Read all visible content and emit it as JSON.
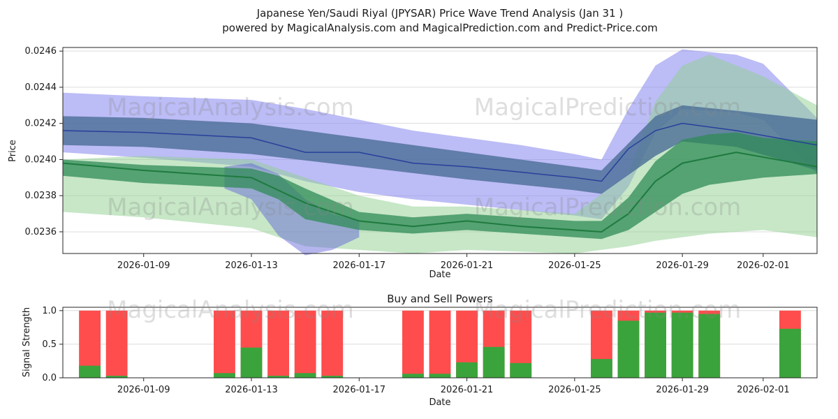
{
  "header": {
    "title_line1": "Japanese Yen/Saudi Riyal (JPYSAR) Price Wave Trend Analysis (Jan 31 )",
    "title_line2": "powered by MagicalAnalysis.com and MagicalPrediction.com and Predict-Price.com"
  },
  "watermarks": {
    "left": "MagicalAnalysis.com",
    "right": "MagicalPrediction.com"
  },
  "chart_data": [
    {
      "type": "area",
      "name": "price-wave-trend",
      "xlabel": "Date",
      "ylabel": "Price",
      "grid": true,
      "legend": "none",
      "xlim": [
        "2026-01-06",
        "2026-02-03"
      ],
      "ylim": [
        0.02348,
        0.02462
      ],
      "yticks": [
        0.0236,
        0.0238,
        0.024,
        0.0242,
        0.0244,
        0.0246
      ],
      "ytick_labels": [
        "0.0236",
        "0.0238",
        "0.0240",
        "0.0242",
        "0.0244",
        "0.0246"
      ],
      "xticks": [
        "2026-01-09",
        "2026-01-13",
        "2026-01-17",
        "2026-01-21",
        "2026-01-25",
        "2026-01-29",
        "2026-02-01"
      ],
      "bands": [
        {
          "name": "blue-forecast-band",
          "color": "#8585ee",
          "opacity": 0.55,
          "x": [
            "2026-01-06",
            "2026-01-09",
            "2026-01-13",
            "2026-01-15",
            "2026-01-17",
            "2026-01-19",
            "2026-01-21",
            "2026-01-23",
            "2026-01-25",
            "2026-01-26",
            "2026-01-27",
            "2026-01-28",
            "2026-01-29",
            "2026-01-31",
            "2026-02-01",
            "2026-02-03"
          ],
          "upper": [
            0.02437,
            0.02435,
            0.02433,
            0.02428,
            0.02422,
            0.02416,
            0.02412,
            0.02408,
            0.02403,
            0.024,
            0.02428,
            0.02452,
            0.02461,
            0.02458,
            0.02453,
            0.02423
          ],
          "lower": [
            0.02404,
            0.02401,
            0.02396,
            0.02388,
            0.02382,
            0.02378,
            0.02375,
            0.02372,
            0.02369,
            0.02367,
            0.02385,
            0.02415,
            0.02428,
            0.02426,
            0.02422,
            0.02392
          ]
        },
        {
          "name": "green-outer-band",
          "color": "#8fcf8f",
          "opacity": 0.5,
          "x": [
            "2026-01-06",
            "2026-01-09",
            "2026-01-13",
            "2026-01-15",
            "2026-01-17",
            "2026-01-19",
            "2026-01-21",
            "2026-01-23",
            "2026-01-25",
            "2026-01-27",
            "2026-01-28",
            "2026-01-29",
            "2026-01-30",
            "2026-01-31",
            "2026-02-01",
            "2026-02-03"
          ],
          "upper": [
            0.024,
            0.02402,
            0.024,
            0.0239,
            0.0238,
            0.02374,
            0.02374,
            0.02372,
            0.0237,
            0.02392,
            0.02432,
            0.02452,
            0.02458,
            0.02452,
            0.02446,
            0.0243
          ],
          "lower": [
            0.02371,
            0.02368,
            0.02362,
            0.02352,
            0.0235,
            0.02348,
            0.0235,
            0.02349,
            0.02348,
            0.02352,
            0.02355,
            0.02357,
            0.02359,
            0.0236,
            0.02361,
            0.02357
          ]
        },
        {
          "name": "steel-trend-band",
          "color": "#4a6d96",
          "opacity": 0.8,
          "x": [
            "2026-01-06",
            "2026-01-09",
            "2026-01-13",
            "2026-01-17",
            "2026-01-21",
            "2026-01-25",
            "2026-01-26",
            "2026-01-28",
            "2026-01-29",
            "2026-01-31",
            "2026-02-03"
          ],
          "upper": [
            0.02424,
            0.02423,
            0.0242,
            0.02412,
            0.02404,
            0.02396,
            0.02394,
            0.02424,
            0.0243,
            0.02427,
            0.02422
          ],
          "lower": [
            0.02408,
            0.02407,
            0.02403,
            0.02396,
            0.02389,
            0.02383,
            0.02381,
            0.02402,
            0.0241,
            0.02407,
            0.02394
          ]
        },
        {
          "name": "blue-dip-band",
          "color": "#5b5bd6",
          "opacity": 0.45,
          "x": [
            "2026-01-12",
            "2026-01-13",
            "2026-01-14",
            "2026-01-15",
            "2026-01-16",
            "2026-01-17"
          ],
          "upper": [
            0.02396,
            0.02398,
            0.02392,
            0.02378,
            0.0237,
            0.02366
          ],
          "lower": [
            0.02384,
            0.02378,
            0.02358,
            0.02347,
            0.0235,
            0.02357
          ]
        },
        {
          "name": "green-inner-band",
          "color": "#2f8b57",
          "opacity": 0.75,
          "x": [
            "2026-01-06",
            "2026-01-09",
            "2026-01-13",
            "2026-01-14",
            "2026-01-15",
            "2026-01-17",
            "2026-01-19",
            "2026-01-21",
            "2026-01-23",
            "2026-01-25",
            "2026-01-26",
            "2026-01-27",
            "2026-01-28",
            "2026-01-29",
            "2026-01-30",
            "2026-01-31",
            "2026-02-01",
            "2026-02-03"
          ],
          "upper": [
            0.024,
            0.02397,
            0.02395,
            0.02391,
            0.02384,
            0.02371,
            0.02368,
            0.0237,
            0.02368,
            0.02366,
            0.02366,
            0.02379,
            0.02399,
            0.02411,
            0.02414,
            0.02415,
            0.02412,
            0.0241
          ],
          "lower": [
            0.02391,
            0.02387,
            0.02384,
            0.02378,
            0.02367,
            0.02361,
            0.02359,
            0.02361,
            0.02359,
            0.02357,
            0.02356,
            0.02361,
            0.02371,
            0.02381,
            0.02386,
            0.02388,
            0.0239,
            0.02392
          ]
        }
      ],
      "lines": [
        {
          "name": "price-trend-line-green",
          "color": "#1e7a3e",
          "width": 2,
          "x": [
            "2026-01-06",
            "2026-01-09",
            "2026-01-13",
            "2026-01-15",
            "2026-01-17",
            "2026-01-19",
            "2026-01-21",
            "2026-01-23",
            "2026-01-25",
            "2026-01-26",
            "2026-01-27",
            "2026-01-28",
            "2026-01-29",
            "2026-01-31",
            "2026-02-03"
          ],
          "y": [
            0.02398,
            0.02394,
            0.0239,
            0.02376,
            0.02366,
            0.02363,
            0.02366,
            0.02363,
            0.02361,
            0.0236,
            0.0237,
            0.02388,
            0.02398,
            0.02404,
            0.02396
          ]
        },
        {
          "name": "price-trend-line-blue",
          "color": "#27409b",
          "width": 1.5,
          "x": [
            "2026-01-06",
            "2026-01-09",
            "2026-01-13",
            "2026-01-15",
            "2026-01-17",
            "2026-01-19",
            "2026-01-21",
            "2026-01-23",
            "2026-01-25",
            "2026-01-26",
            "2026-01-27",
            "2026-01-28",
            "2026-01-29",
            "2026-01-31",
            "2026-02-03"
          ],
          "y": [
            0.02416,
            0.02415,
            0.02412,
            0.02404,
            0.02404,
            0.02398,
            0.02396,
            0.02393,
            0.0239,
            0.02388,
            0.02406,
            0.02416,
            0.0242,
            0.02416,
            0.02408
          ]
        }
      ]
    },
    {
      "type": "bar",
      "name": "buy-sell-powers",
      "title": "Buy and Sell Powers",
      "xlabel": "Date",
      "ylabel": "Signal Strength",
      "grid": true,
      "xlim": [
        "2026-01-06",
        "2026-02-03"
      ],
      "ylim": [
        0,
        1.05
      ],
      "yticks": [
        0.0,
        0.5,
        1.0
      ],
      "ytick_labels": [
        "0.0",
        "0.5",
        "1.0"
      ],
      "xticks": [
        "2026-01-09",
        "2026-01-13",
        "2026-01-17",
        "2026-01-21",
        "2026-01-25",
        "2026-01-29",
        "2026-02-01"
      ],
      "categories": [
        "2026-01-07",
        "2026-01-08",
        "2026-01-12",
        "2026-01-13",
        "2026-01-14",
        "2026-01-15",
        "2026-01-16",
        "2026-01-19",
        "2026-01-20",
        "2026-01-21",
        "2026-01-22",
        "2026-01-23",
        "2026-01-26",
        "2026-01-27",
        "2026-01-28",
        "2026-01-29",
        "2026-01-30",
        "2026-02-02"
      ],
      "series": [
        {
          "name": "Sell",
          "color": "#ff4d4d",
          "values": [
            1.0,
            1.0,
            1.0,
            1.0,
            1.0,
            1.0,
            1.0,
            1.0,
            1.0,
            1.0,
            1.0,
            1.0,
            1.0,
            1.0,
            1.0,
            1.0,
            1.0,
            1.0
          ]
        },
        {
          "name": "Buy",
          "color": "#3ba33b",
          "values": [
            0.18,
            0.03,
            0.07,
            0.45,
            0.03,
            0.07,
            0.03,
            0.06,
            0.06,
            0.23,
            0.46,
            0.22,
            0.28,
            0.85,
            0.97,
            0.97,
            0.95,
            0.73
          ]
        }
      ]
    }
  ]
}
